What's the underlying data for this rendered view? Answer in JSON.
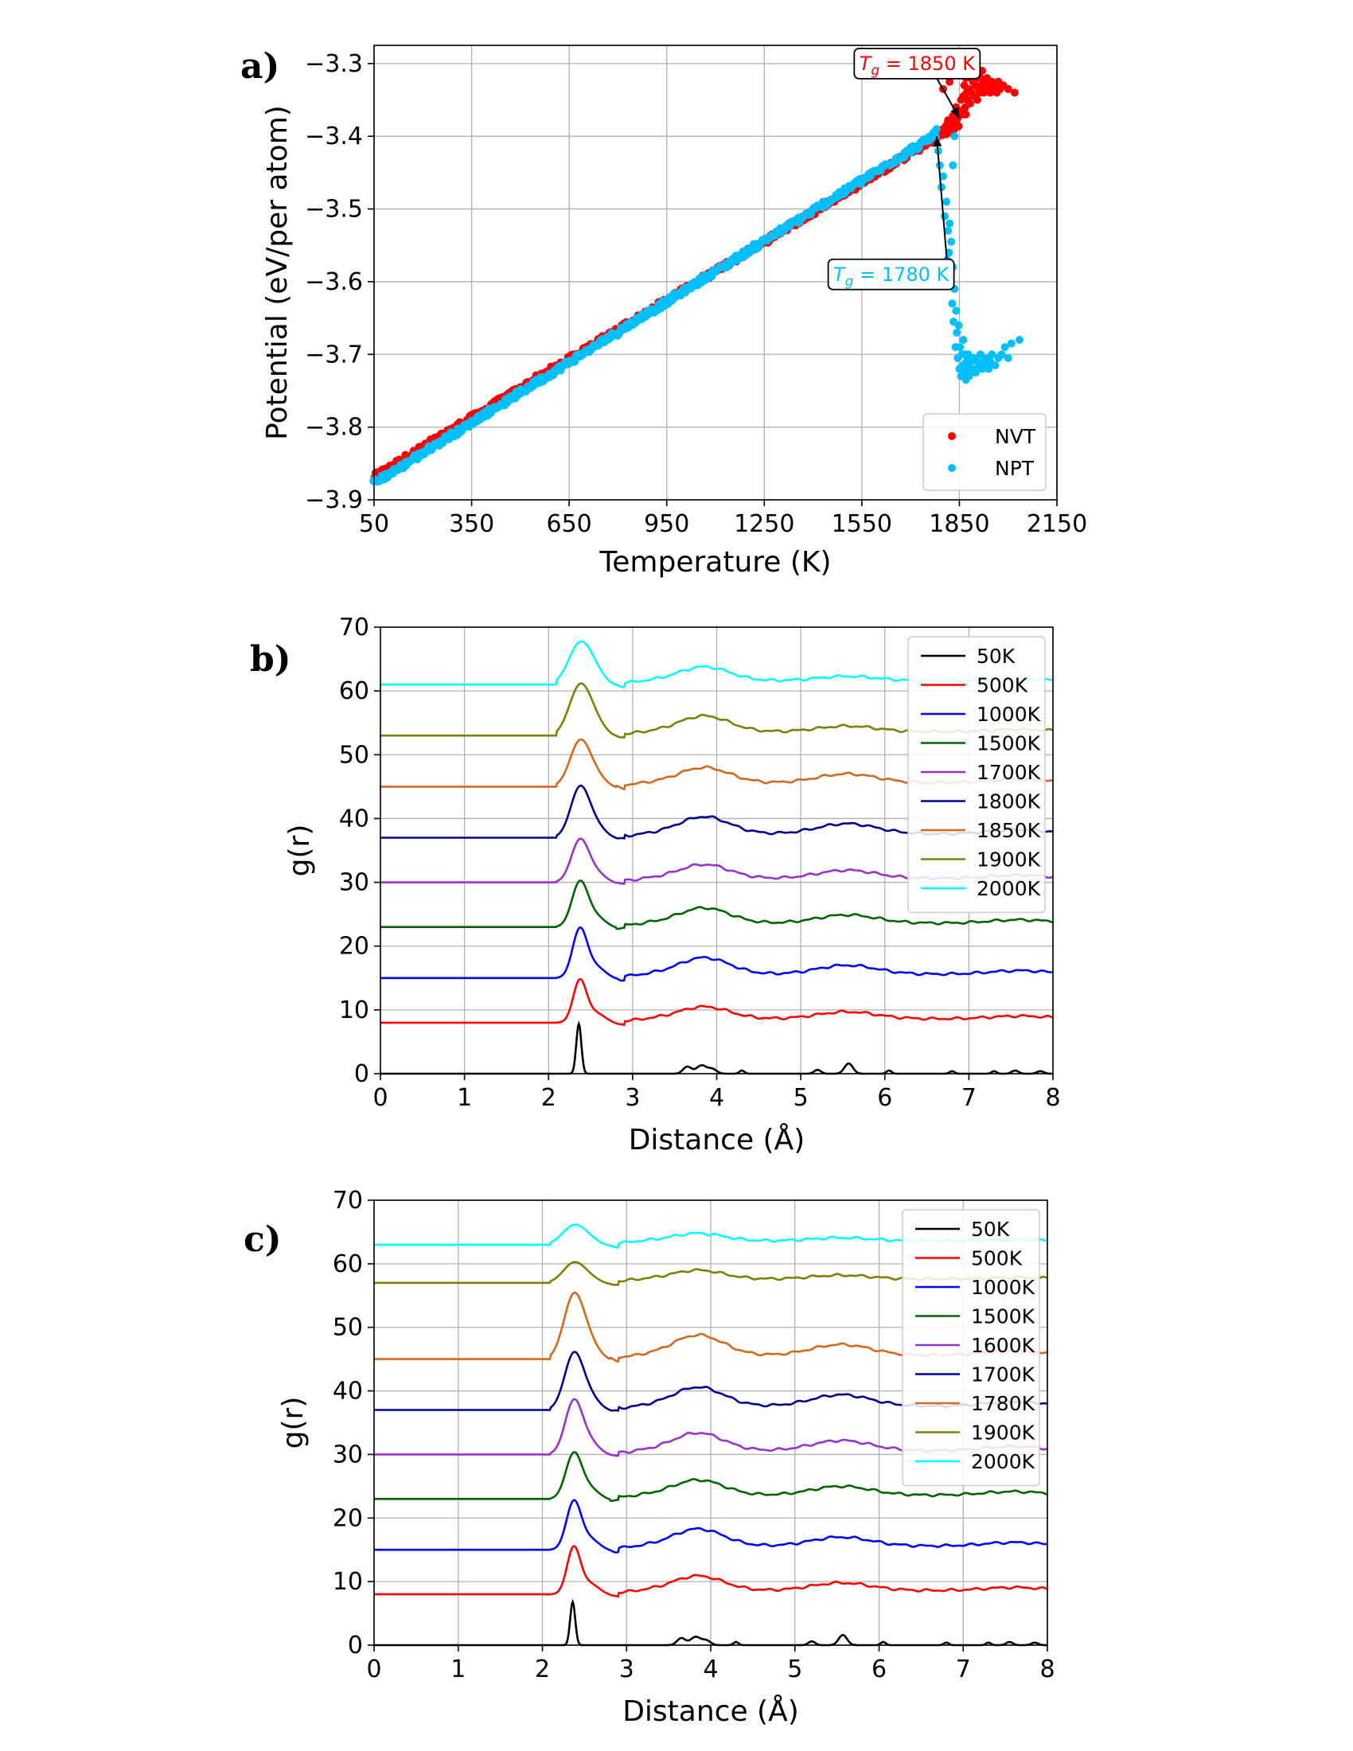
{
  "figure": {
    "colors": {
      "nvt": "#ff0000",
      "npt": "#00bfff"
    },
    "panels": [
      "a)",
      "b)",
      "c)"
    ]
  },
  "chart_data": [
    {
      "id": "a",
      "type": "scatter",
      "panel_label": "a)",
      "xlabel": "Temperature (K)",
      "ylabel": "Potential (eV/per atom)",
      "xlim": [
        50,
        2150
      ],
      "ylim": [
        -3.9,
        -3.275
      ],
      "xticks": [
        50,
        350,
        650,
        950,
        1250,
        1550,
        1850,
        2150
      ],
      "yticks": [
        -3.9,
        -3.8,
        -3.7,
        -3.6,
        -3.5,
        -3.4,
        -3.3
      ],
      "ytick_labels": [
        "−3.9",
        "−3.8",
        "−3.7",
        "−3.6",
        "−3.5",
        "−3.4",
        "−3.3"
      ],
      "grid": true,
      "legend_position": "bottom-right",
      "series": [
        {
          "name": "NVT",
          "color": "#ff0000",
          "linear_segment": {
            "x_start": 50,
            "x_end": 1850,
            "y_start": -3.87,
            "y_end": -3.385
          },
          "points": [
            [
              1800,
              -3.39
            ],
            [
              1810,
              -3.385
            ],
            [
              1815,
              -3.378
            ],
            [
              1820,
              -3.395
            ],
            [
              1825,
              -3.38
            ],
            [
              1830,
              -3.372
            ],
            [
              1835,
              -3.39
            ],
            [
              1840,
              -3.36
            ],
            [
              1845,
              -3.375
            ],
            [
              1850,
              -3.365
            ],
            [
              1855,
              -3.35
            ],
            [
              1860,
              -3.37
            ],
            [
              1862,
              -3.345
            ],
            [
              1865,
              -3.33
            ],
            [
              1868,
              -3.36
            ],
            [
              1870,
              -3.32
            ],
            [
              1872,
              -3.34
            ],
            [
              1875,
              -3.35
            ],
            [
              1878,
              -3.31
            ],
            [
              1880,
              -3.335
            ],
            [
              1883,
              -3.355
            ],
            [
              1885,
              -3.32
            ],
            [
              1888,
              -3.34
            ],
            [
              1890,
              -3.3
            ],
            [
              1892,
              -3.325
            ],
            [
              1895,
              -3.345
            ],
            [
              1898,
              -3.31
            ],
            [
              1900,
              -3.33
            ],
            [
              1903,
              -3.32
            ],
            [
              1905,
              -3.35
            ],
            [
              1908,
              -3.315
            ],
            [
              1910,
              -3.335
            ],
            [
              1913,
              -3.34
            ],
            [
              1915,
              -3.32
            ],
            [
              1918,
              -3.33
            ],
            [
              1920,
              -3.31
            ],
            [
              1925,
              -3.34
            ],
            [
              1928,
              -3.325
            ],
            [
              1930,
              -3.335
            ],
            [
              1935,
              -3.32
            ],
            [
              1940,
              -3.33
            ],
            [
              1945,
              -3.34
            ],
            [
              1950,
              -3.325
            ],
            [
              1955,
              -3.335
            ],
            [
              1960,
              -3.33
            ],
            [
              1965,
              -3.34
            ],
            [
              1970,
              -3.325
            ],
            [
              1975,
              -3.335
            ],
            [
              1985,
              -3.33
            ],
            [
              2000,
              -3.335
            ],
            [
              2020,
              -3.34
            ],
            [
              1800,
              -3.335
            ],
            [
              1820,
              -3.325
            ],
            [
              1870,
              -3.37
            ]
          ]
        },
        {
          "name": "NPT",
          "color": "#00bfff",
          "linear_segment": {
            "x_start": 50,
            "x_end": 1780,
            "y_start": -3.875,
            "y_end": -3.395
          },
          "points": [
            [
              1760,
              -3.4
            ],
            [
              1770,
              -3.395
            ],
            [
              1780,
              -3.39
            ],
            [
              1785,
              -3.42
            ],
            [
              1790,
              -3.44
            ],
            [
              1795,
              -3.47
            ],
            [
              1800,
              -3.455
            ],
            [
              1805,
              -3.51
            ],
            [
              1810,
              -3.49
            ],
            [
              1815,
              -3.53
            ],
            [
              1818,
              -3.56
            ],
            [
              1820,
              -3.52
            ],
            [
              1822,
              -3.6
            ],
            [
              1825,
              -3.545
            ],
            [
              1828,
              -3.63
            ],
            [
              1830,
              -3.58
            ],
            [
              1832,
              -3.655
            ],
            [
              1835,
              -3.61
            ],
            [
              1838,
              -3.69
            ],
            [
              1840,
              -3.64
            ],
            [
              1842,
              -3.67
            ],
            [
              1845,
              -3.705
            ],
            [
              1848,
              -3.66
            ],
            [
              1850,
              -3.72
            ],
            [
              1852,
              -3.69
            ],
            [
              1855,
              -3.73
            ],
            [
              1858,
              -3.7
            ],
            [
              1860,
              -3.715
            ],
            [
              1862,
              -3.68
            ],
            [
              1865,
              -3.725
            ],
            [
              1868,
              -3.7
            ],
            [
              1870,
              -3.735
            ],
            [
              1872,
              -3.71
            ],
            [
              1875,
              -3.72
            ],
            [
              1878,
              -3.7
            ],
            [
              1880,
              -3.73
            ],
            [
              1885,
              -3.71
            ],
            [
              1890,
              -3.72
            ],
            [
              1895,
              -3.705
            ],
            [
              1900,
              -3.725
            ],
            [
              1905,
              -3.71
            ],
            [
              1910,
              -3.715
            ],
            [
              1915,
              -3.7
            ],
            [
              1920,
              -3.72
            ],
            [
              1925,
              -3.71
            ],
            [
              1930,
              -3.715
            ],
            [
              1935,
              -3.705
            ],
            [
              1940,
              -3.72
            ],
            [
              1945,
              -3.71
            ],
            [
              1950,
              -3.7
            ],
            [
              1960,
              -3.715
            ],
            [
              1970,
              -3.705
            ],
            [
              1980,
              -3.7
            ],
            [
              1990,
              -3.69
            ],
            [
              2000,
              -3.705
            ],
            [
              2010,
              -3.685
            ],
            [
              2035,
              -3.68
            ],
            [
              1830,
              -3.44
            ],
            [
              1835,
              -3.4
            ],
            [
              1812,
              -3.57
            ]
          ]
        }
      ],
      "annotations": [
        {
          "label": "T_g = 1850 K",
          "prefix": "T",
          "sub": "g",
          "rest": " = 1850 K",
          "color": "#ff0000",
          "point": [
            1850,
            -3.375
          ],
          "text_at": [
            1720,
            -3.3
          ]
        },
        {
          "label": "T_g = 1780 K",
          "prefix": "T",
          "sub": "g",
          "rest": " = 1780 K",
          "color": "#00bfff",
          "point": [
            1780,
            -3.4
          ],
          "text_at": [
            1640,
            -3.59
          ]
        }
      ]
    },
    {
      "id": "b",
      "type": "line",
      "panel_label": "b)",
      "xlabel": "Distance (Å)",
      "ylabel": "g(r)",
      "xlim": [
        0,
        8
      ],
      "ylim": [
        0,
        70
      ],
      "xticks": [
        0,
        1,
        2,
        3,
        4,
        5,
        6,
        7,
        8
      ],
      "yticks": [
        0,
        10,
        20,
        30,
        40,
        50,
        60,
        70
      ],
      "grid": true,
      "legend_position": "top-right",
      "series": [
        {
          "name": "50K",
          "color": "#000000",
          "offset": 0,
          "peak1": 7.8,
          "second": [
            1.0,
            0.5
          ],
          "crystal": true
        },
        {
          "name": "500K",
          "color": "#ff0000",
          "offset": 8,
          "peak1": 6.3,
          "second": [
            1.9,
            1.1
          ]
        },
        {
          "name": "1000K",
          "color": "#0000ff",
          "offset": 15,
          "peak1": 7.3,
          "second": [
            2.6,
            1.4
          ]
        },
        {
          "name": "1500K",
          "color": "#006400",
          "offset": 23,
          "peak1": 6.7,
          "second": [
            2.4,
            1.3
          ]
        },
        {
          "name": "1700K",
          "color": "#9932cc",
          "offset": 30,
          "peak1": 6.3,
          "second": [
            2.2,
            1.3
          ]
        },
        {
          "name": "1800K",
          "color": "#00008b",
          "offset": 37,
          "peak1": 7.5,
          "second": [
            2.7,
            1.6
          ]
        },
        {
          "name": "1850K",
          "color": "#d2691e",
          "offset": 45,
          "peak1": 6.8,
          "second": [
            2.4,
            1.4
          ]
        },
        {
          "name": "1900K",
          "color": "#808000",
          "offset": 53,
          "peak1": 7.5,
          "second": [
            2.5,
            0.9
          ]
        },
        {
          "name": "2000K",
          "color": "#00ffff",
          "offset": 61,
          "peak1": 6.2,
          "second": [
            2.2,
            0.7
          ]
        }
      ]
    },
    {
      "id": "c",
      "type": "line",
      "panel_label": "c)",
      "xlabel": "Distance (Å)",
      "ylabel": "g(r)",
      "xlim": [
        0,
        8
      ],
      "ylim": [
        0,
        70
      ],
      "xticks": [
        0,
        1,
        2,
        3,
        4,
        5,
        6,
        7,
        8
      ],
      "yticks": [
        0,
        10,
        20,
        30,
        40,
        50,
        60,
        70
      ],
      "grid": true,
      "legend_position": "top-right",
      "series": [
        {
          "name": "50K",
          "color": "#000000",
          "offset": 0,
          "peak1": 6.8,
          "second": [
            1.2,
            0.6
          ],
          "crystal": true
        },
        {
          "name": "500K",
          "color": "#ff0000",
          "offset": 8,
          "peak1": 7.0,
          "second": [
            2.3,
            1.2
          ]
        },
        {
          "name": "1000K",
          "color": "#0000ff",
          "offset": 15,
          "peak1": 7.2,
          "second": [
            2.7,
            1.4
          ]
        },
        {
          "name": "1500K",
          "color": "#006400",
          "offset": 23,
          "peak1": 6.8,
          "second": [
            2.4,
            1.4
          ]
        },
        {
          "name": "1600K",
          "color": "#9932cc",
          "offset": 30,
          "peak1": 8.0,
          "second": [
            2.8,
            1.6
          ]
        },
        {
          "name": "1700K",
          "color": "#00008b",
          "offset": 37,
          "peak1": 8.4,
          "second": [
            3.0,
            1.8
          ]
        },
        {
          "name": "1780K",
          "color": "#d2691e",
          "offset": 45,
          "peak1": 9.6,
          "second": [
            3.2,
            1.7
          ]
        },
        {
          "name": "1900K",
          "color": "#808000",
          "offset": 57,
          "peak1": 3.0,
          "second": [
            1.4,
            0.6
          ]
        },
        {
          "name": "2000K",
          "color": "#00ffff",
          "offset": 63,
          "peak1": 2.9,
          "second": [
            1.2,
            0.5
          ]
        }
      ]
    }
  ]
}
